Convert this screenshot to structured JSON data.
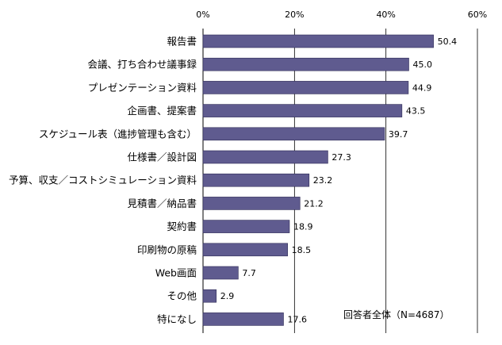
{
  "chart_data": {
    "type": "bar",
    "orientation": "horizontal",
    "categories": [
      "報告書",
      "会議、打ち合わせ議事録",
      "プレゼンテーション資料",
      "企画書、提案書",
      "スケジュール表（進捗管理も含む）",
      "仕様書／設計図",
      "予算、収支／コストシミュレーション資料",
      "見積書／納品書",
      "契約書",
      "印刷物の原稿",
      "Web画面",
      "その他",
      "特になし"
    ],
    "values": [
      50.4,
      45.0,
      44.9,
      43.5,
      39.7,
      27.3,
      23.2,
      21.2,
      18.9,
      18.5,
      7.7,
      2.9,
      17.6
    ],
    "value_labels": [
      "50.4",
      "45.0",
      "44.9",
      "43.5",
      "39.7",
      "27.3",
      "23.2",
      "21.2",
      "18.9",
      "18.5",
      "7.7",
      "2.9",
      "17.6"
    ],
    "xlim": [
      0,
      60
    ],
    "ticks": [
      0,
      20,
      40,
      60
    ],
    "tick_labels": [
      "0%",
      "20%",
      "40%",
      "60%"
    ],
    "grid": true,
    "annotation": "回答者全体（N=4687）",
    "title": "",
    "xlabel": "",
    "ylabel": ""
  },
  "colors": {
    "bar": "#5f5b8f",
    "bar_stroke": "#2e2b55",
    "grid": "#000000",
    "text": "#000000"
  }
}
